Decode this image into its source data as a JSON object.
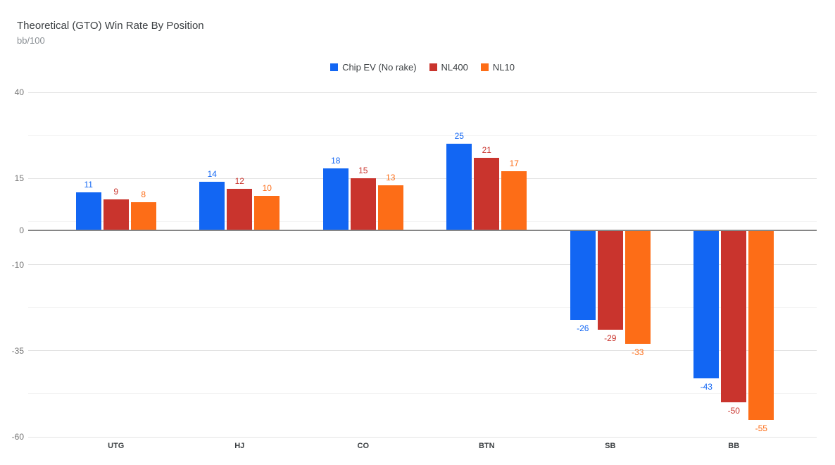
{
  "header": {
    "title": "Theoretical (GTO) Win Rate By Position",
    "subtitle": "bb/100"
  },
  "legend": {
    "items": [
      {
        "label": "Chip EV (No rake)",
        "color": "#1266f3"
      },
      {
        "label": "NL400",
        "color": "#c9342d"
      },
      {
        "label": "NL10",
        "color": "#fd6d17"
      }
    ]
  },
  "chart_data": {
    "type": "bar",
    "title": "Theoretical (GTO) Win Rate By Position",
    "ylabel": "bb/100",
    "xlabel": "",
    "categories": [
      "UTG",
      "HJ",
      "CO",
      "BTN",
      "SB",
      "BB"
    ],
    "series": [
      {
        "name": "Chip EV (No rake)",
        "color": "#1266f3",
        "values": [
          11,
          14,
          18,
          25,
          -26,
          -43
        ]
      },
      {
        "name": "NL400",
        "color": "#c9342d",
        "values": [
          9,
          12,
          15,
          21,
          -29,
          -50
        ]
      },
      {
        "name": "NL10",
        "color": "#fd6d17",
        "values": [
          8,
          10,
          13,
          17,
          -33,
          -55
        ]
      }
    ],
    "ylim": [
      -60,
      40
    ],
    "y_ticks": [
      {
        "value": 40,
        "label": "40"
      },
      {
        "value": 15,
        "label": "15"
      },
      {
        "value": 0,
        "label": "0"
      },
      {
        "value": -10,
        "label": "-10"
      },
      {
        "value": -35,
        "label": "-35"
      },
      {
        "value": -60,
        "label": "-60"
      }
    ],
    "major_gridlines": [
      40,
      15,
      -10,
      -35,
      -60
    ],
    "minor_gridlines": [
      27.5,
      2.5,
      -22.5,
      -47.5
    ],
    "grid": true,
    "legend_position": "top",
    "data_labels": true
  }
}
